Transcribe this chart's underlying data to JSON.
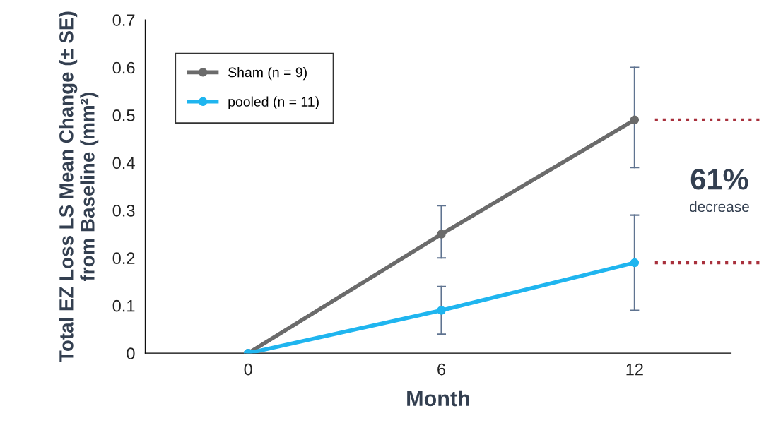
{
  "chart_data": {
    "type": "line",
    "xlabel": "Month",
    "ylabel": "Total EZ Loss LS Mean Change (± SE)\nfrom Baseline (mm²)",
    "x": [
      0,
      6,
      12
    ],
    "xlim": [
      -3.2,
      15
    ],
    "xticks": [
      0,
      6,
      12
    ],
    "ylim": [
      0,
      0.7
    ],
    "yticks": [
      0,
      0.1,
      0.2,
      0.3,
      0.4,
      0.5,
      0.6,
      0.7
    ],
    "series": [
      {
        "name": "Sham (n = 9)",
        "color": "#6b6b6b",
        "values": [
          0,
          0.25,
          0.49
        ],
        "errors": [
          null,
          [
            0.2,
            0.31
          ],
          [
            0.39,
            0.6
          ]
        ]
      },
      {
        "name": "pooled (n = 11)",
        "color": "#1fb5ef",
        "values": [
          0,
          0.09,
          0.19
        ],
        "errors": [
          null,
          [
            0.04,
            0.14
          ],
          [
            0.09,
            0.29
          ]
        ]
      }
    ],
    "ref_lines": [
      {
        "axis": "y",
        "value": 0.49,
        "color": "#a8303c",
        "line_style": "dotted"
      },
      {
        "axis": "y",
        "value": 0.19,
        "color": "#a8303c",
        "line_style": "dotted"
      }
    ],
    "annotations": [
      "61%",
      "decrease"
    ],
    "marker": "circle",
    "line_style": "solid",
    "legend": "top left",
    "grid": false
  }
}
